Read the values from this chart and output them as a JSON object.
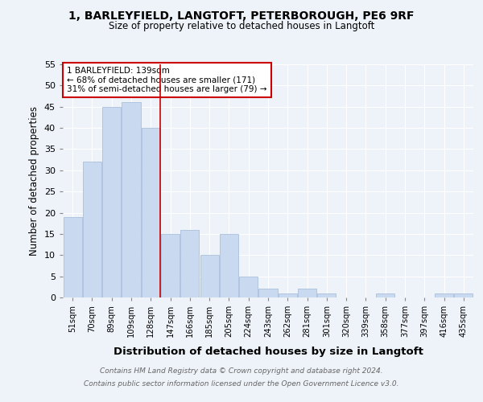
{
  "title_line1": "1, BARLEYFIELD, LANGTOFT, PETERBOROUGH, PE6 9RF",
  "title_line2": "Size of property relative to detached houses in Langtoft",
  "xlabel": "Distribution of detached houses by size in Langtoft",
  "ylabel": "Number of detached properties",
  "categories": [
    "51sqm",
    "70sqm",
    "89sqm",
    "109sqm",
    "128sqm",
    "147sqm",
    "166sqm",
    "185sqm",
    "205sqm",
    "224sqm",
    "243sqm",
    "262sqm",
    "281sqm",
    "301sqm",
    "320sqm",
    "339sqm",
    "358sqm",
    "377sqm",
    "397sqm",
    "416sqm",
    "435sqm"
  ],
  "values": [
    19,
    32,
    45,
    46,
    40,
    15,
    16,
    10,
    15,
    5,
    2,
    1,
    2,
    1,
    0,
    0,
    1,
    0,
    0,
    1,
    1
  ],
  "bar_color": "#c9d9f0",
  "bar_edge_color": "#a0b8d8",
  "vline_x": 4.5,
  "marker_label_line1": "1 BARLEYFIELD: 139sqm",
  "marker_label_line2": "← 68% of detached houses are smaller (171)",
  "marker_label_line3": "31% of semi-detached houses are larger (79) →",
  "annotation_box_color": "#ffffff",
  "annotation_box_edge": "#cc0000",
  "vline_color": "#cc0000",
  "ylim": [
    0,
    55
  ],
  "yticks": [
    0,
    5,
    10,
    15,
    20,
    25,
    30,
    35,
    40,
    45,
    50,
    55
  ],
  "footer_line1": "Contains HM Land Registry data © Crown copyright and database right 2024.",
  "footer_line2": "Contains public sector information licensed under the Open Government Licence v3.0.",
  "background_color": "#eef2f9",
  "grid_color": "#ffffff"
}
